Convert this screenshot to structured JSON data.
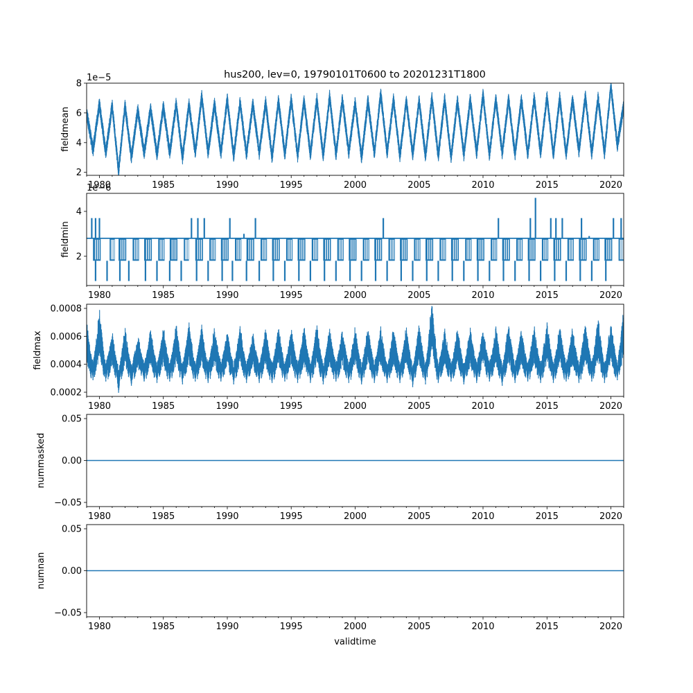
{
  "title": "hus200, lev=0, 19790101T0600 to 20201231T1800",
  "colors": {
    "line": "#1f77b4",
    "axes": "#000000",
    "background": "#ffffff"
  },
  "chart_data": [
    {
      "type": "line",
      "ylabel": "fieldmean",
      "offset_text": "1e−5",
      "xlabel": "",
      "xlim": [
        1979.0,
        2021.0
      ],
      "ylim": [
        1.8,
        8.0
      ],
      "x_ticks": [
        1980,
        1985,
        1990,
        1995,
        2000,
        2005,
        2010,
        2015,
        2020
      ],
      "y_ticks": [
        2,
        4,
        6,
        8
      ],
      "y_tick_labels": [
        "2",
        "4",
        "6",
        "8"
      ],
      "series": [
        {
          "x": [
            1979.0,
            1979.5,
            1980.0,
            1980.5,
            1981.0,
            1981.5,
            1982.0,
            1982.5,
            1983.0,
            1983.5,
            1984.0,
            1984.5,
            1985.0,
            1985.5,
            1986.0,
            1986.5,
            1987.0,
            1987.5,
            1988.0,
            1988.5,
            1989.0,
            1989.5,
            1990.0,
            1990.5,
            1991.0,
            1991.5,
            1992.0,
            1992.5,
            1993.0,
            1993.5,
            1994.0,
            1994.5,
            1995.0,
            1995.5,
            1996.0,
            1996.5,
            1997.0,
            1997.5,
            1998.0,
            1998.5,
            1999.0,
            1999.5,
            2000.0,
            2000.5,
            2001.0,
            2001.5,
            2002.0,
            2002.5,
            2003.0,
            2003.5,
            2004.0,
            2004.5,
            2005.0,
            2005.5,
            2006.0,
            2006.5,
            2007.0,
            2007.5,
            2008.0,
            2008.5,
            2009.0,
            2009.5,
            2010.0,
            2010.5,
            2011.0,
            2011.5,
            2012.0,
            2012.5,
            2013.0,
            2013.5,
            2014.0,
            2014.5,
            2015.0,
            2015.5,
            2016.0,
            2016.5,
            2017.0,
            2017.5,
            2018.0,
            2018.5,
            2019.0,
            2019.5,
            2020.0,
            2020.5,
            2021.0
          ],
          "y": [
            6.0,
            3.5,
            6.6,
            3.3,
            6.5,
            2.1,
            6.5,
            3.0,
            6.2,
            3.3,
            6.3,
            3.2,
            6.4,
            3.3,
            6.6,
            3.0,
            6.6,
            3.3,
            7.1,
            3.3,
            6.6,
            3.3,
            6.9,
            3.1,
            6.7,
            3.2,
            6.6,
            3.3,
            6.7,
            3.0,
            6.8,
            3.2,
            6.9,
            3.1,
            6.8,
            3.2,
            6.9,
            3.1,
            7.1,
            3.2,
            6.9,
            3.3,
            6.7,
            3.0,
            6.8,
            3.3,
            7.3,
            3.3,
            6.9,
            3.1,
            6.8,
            3.2,
            6.8,
            3.1,
            7.0,
            3.1,
            6.9,
            3.0,
            6.8,
            3.2,
            6.9,
            3.3,
            7.2,
            3.2,
            6.9,
            3.3,
            6.9,
            3.2,
            6.9,
            3.2,
            7.0,
            3.3,
            7.1,
            3.2,
            7.0,
            3.2,
            6.9,
            3.4,
            7.1,
            3.3,
            7.0,
            3.3,
            7.8,
            3.8,
            6.5
          ]
        }
      ]
    },
    {
      "type": "line",
      "ylabel": "fieldmin",
      "offset_text": "1e−6",
      "xlabel": "",
      "xlim": [
        1979.0,
        2021.0
      ],
      "ylim": [
        0.7,
        4.8
      ],
      "x_ticks": [
        1980,
        1985,
        1990,
        1995,
        2000,
        2005,
        2010,
        2015,
        2020
      ],
      "y_ticks": [
        2,
        4
      ],
      "y_tick_labels": [
        "2",
        "4"
      ],
      "baseline": 2.8,
      "low_level": 1.8,
      "min_level": 0.9,
      "low_bands": [
        [
          1979.5,
          1980.1
        ],
        [
          1980.8,
          1981.2
        ],
        [
          1981.5,
          1982.1
        ],
        [
          1982.6,
          1983.1
        ],
        [
          1983.5,
          1984.1
        ],
        [
          1984.6,
          1985.1
        ],
        [
          1985.5,
          1986.1
        ],
        [
          1986.6,
          1987.0
        ],
        [
          1987.5,
          1988.1
        ],
        [
          1988.6,
          1989.1
        ],
        [
          1989.5,
          1990.1
        ],
        [
          1990.6,
          1991.1
        ],
        [
          1991.5,
          1992.1
        ],
        [
          1992.6,
          1993.1
        ],
        [
          1993.5,
          1994.1
        ],
        [
          1994.6,
          1995.1
        ],
        [
          1995.5,
          1996.1
        ],
        [
          1996.6,
          1997.1
        ],
        [
          1997.5,
          1998.1
        ],
        [
          1998.6,
          1999.1
        ],
        [
          1999.5,
          2000.1
        ],
        [
          2000.6,
          2001.1
        ],
        [
          2001.5,
          2002.1
        ],
        [
          2002.6,
          2003.1
        ],
        [
          2003.5,
          2004.1
        ],
        [
          2004.6,
          2005.1
        ],
        [
          2005.5,
          2006.1
        ],
        [
          2006.6,
          2007.1
        ],
        [
          2007.5,
          2008.1
        ],
        [
          2008.6,
          2009.1
        ],
        [
          2009.5,
          2010.1
        ],
        [
          2010.6,
          2011.1
        ],
        [
          2011.5,
          2012.1
        ],
        [
          2012.6,
          2013.1
        ],
        [
          2013.5,
          2014.1
        ],
        [
          2014.6,
          2015.1
        ],
        [
          2015.5,
          2016.1
        ],
        [
          2016.6,
          2017.1
        ],
        [
          2017.5,
          2018.1
        ],
        [
          2018.6,
          2019.1
        ],
        [
          2019.5,
          2020.1
        ],
        [
          2020.6,
          2021.0
        ]
      ],
      "dips": [
        1979.7,
        1980.6,
        1981.6,
        1982.3,
        1983.6,
        1984.5,
        1985.5,
        1986.4,
        1987.6,
        1988.5,
        1989.6,
        1990.4,
        1991.5,
        1992.5,
        1993.6,
        1994.5,
        1995.6,
        1996.5,
        1997.6,
        1998.5,
        1999.6,
        2000.5,
        2001.6,
        2002.5,
        2003.6,
        2004.5,
        2005.6,
        2006.5,
        2007.6,
        2008.5,
        2009.6,
        2010.5,
        2011.6,
        2012.5,
        2013.6,
        2014.5,
        2015.6,
        2016.5,
        2017.6,
        2018.5,
        2019.6
      ],
      "spikes": [
        [
          1979.4,
          3.7
        ],
        [
          1979.7,
          3.7
        ],
        [
          1980.0,
          3.7
        ],
        [
          1987.2,
          3.7
        ],
        [
          1987.7,
          3.7
        ],
        [
          1988.2,
          3.7
        ],
        [
          1990.2,
          3.7
        ],
        [
          1991.3,
          3.0
        ],
        [
          1992.2,
          3.7
        ],
        [
          2002.2,
          3.7
        ],
        [
          2011.2,
          3.7
        ],
        [
          2013.7,
          3.7
        ],
        [
          2014.1,
          4.6
        ],
        [
          2015.3,
          3.7
        ],
        [
          2015.7,
          3.7
        ],
        [
          2016.2,
          3.7
        ],
        [
          2017.7,
          3.7
        ],
        [
          2018.3,
          2.9
        ],
        [
          2020.2,
          3.7
        ],
        [
          2020.8,
          3.7
        ]
      ]
    },
    {
      "type": "line",
      "ylabel": "fieldmax",
      "offset_text": "",
      "xlabel": "",
      "xlim": [
        1979.0,
        2021.0
      ],
      "ylim": [
        0.00017,
        0.00083
      ],
      "x_ticks": [
        1980,
        1985,
        1990,
        1995,
        2000,
        2005,
        2010,
        2015,
        2020
      ],
      "y_ticks": [
        0.0002,
        0.0004,
        0.0006,
        0.0008
      ],
      "y_tick_labels": [
        "0.0002",
        "0.0004",
        "0.0006",
        "0.0008"
      ],
      "series": [
        {
          "x": [
            1979.0,
            1979.5,
            1980.0,
            1980.5,
            1981.0,
            1981.5,
            1982.0,
            1982.5,
            1983.0,
            1983.5,
            1984.0,
            1984.5,
            1985.0,
            1985.5,
            1986.0,
            1986.5,
            1987.0,
            1987.5,
            1988.0,
            1988.5,
            1989.0,
            1989.5,
            1990.0,
            1990.5,
            1991.0,
            1991.5,
            1992.0,
            1992.5,
            1993.0,
            1993.5,
            1994.0,
            1994.5,
            1995.0,
            1995.5,
            1996.0,
            1996.5,
            1997.0,
            1997.5,
            1998.0,
            1998.5,
            1999.0,
            1999.5,
            2000.0,
            2000.5,
            2001.0,
            2001.5,
            2002.0,
            2002.5,
            2003.0,
            2003.5,
            2004.0,
            2004.5,
            2005.0,
            2005.5,
            2006.0,
            2006.5,
            2007.0,
            2007.5,
            2008.0,
            2008.5,
            2009.0,
            2009.5,
            2010.0,
            2010.5,
            2011.0,
            2011.5,
            2012.0,
            2012.5,
            2013.0,
            2013.5,
            2014.0,
            2014.5,
            2015.0,
            2015.5,
            2016.0,
            2016.5,
            2017.0,
            2017.5,
            2018.0,
            2018.5,
            2019.0,
            2019.5,
            2020.0,
            2020.5,
            2021.0
          ],
          "y": [
            0.00063,
            0.00029,
            0.00072,
            0.00028,
            0.00057,
            0.0002,
            0.0006,
            0.00025,
            0.00055,
            0.00028,
            0.00058,
            0.00027,
            0.0006,
            0.00028,
            0.00061,
            0.00026,
            0.00063,
            0.00028,
            0.0006,
            0.00027,
            0.00061,
            0.00028,
            0.00058,
            0.00026,
            0.00061,
            0.00027,
            0.00057,
            0.00027,
            0.0006,
            0.00027,
            0.00061,
            0.00028,
            0.00059,
            0.00027,
            0.0006,
            0.00027,
            0.00062,
            0.00026,
            0.0006,
            0.00028,
            0.00059,
            0.00027,
            0.0006,
            0.00026,
            0.00061,
            0.00027,
            0.0006,
            0.00027,
            0.00059,
            0.00027,
            0.00061,
            0.00024,
            0.00062,
            0.00026,
            0.0008,
            0.00027,
            0.00058,
            0.00028,
            0.00059,
            0.00026,
            0.0006,
            0.00027,
            0.00059,
            0.00028,
            0.0006,
            0.00025,
            0.00063,
            0.00027,
            0.00058,
            0.00028,
            0.0006,
            0.00027,
            0.00064,
            0.00027,
            0.00062,
            0.00028,
            0.00059,
            0.00027,
            0.00064,
            0.00028,
            0.00067,
            0.00027,
            0.00065,
            0.00029,
            0.00073
          ]
        }
      ]
    },
    {
      "type": "line",
      "ylabel": "nummasked",
      "offset_text": "",
      "xlabel": "",
      "xlim": [
        1979.0,
        2021.0
      ],
      "ylim": [
        -0.055,
        0.055
      ],
      "x_ticks": [
        1980,
        1985,
        1990,
        1995,
        2000,
        2005,
        2010,
        2015,
        2020
      ],
      "y_ticks": [
        -0.05,
        0.0,
        0.05
      ],
      "y_tick_labels": [
        "−0.05",
        "0.00",
        "0.05"
      ],
      "series": [
        {
          "x": [
            1979.0,
            2021.0
          ],
          "y": [
            0.0,
            0.0
          ]
        }
      ]
    },
    {
      "type": "line",
      "ylabel": "numnan",
      "offset_text": "",
      "xlabel": "validtime",
      "xlim": [
        1979.0,
        2021.0
      ],
      "ylim": [
        -0.055,
        0.055
      ],
      "x_ticks": [
        1980,
        1985,
        1990,
        1995,
        2000,
        2005,
        2010,
        2015,
        2020
      ],
      "y_ticks": [
        -0.05,
        0.0,
        0.05
      ],
      "y_tick_labels": [
        "−0.05",
        "0.00",
        "0.05"
      ],
      "series": [
        {
          "x": [
            1979.0,
            2021.0
          ],
          "y": [
            0.0,
            0.0
          ]
        }
      ]
    }
  ]
}
